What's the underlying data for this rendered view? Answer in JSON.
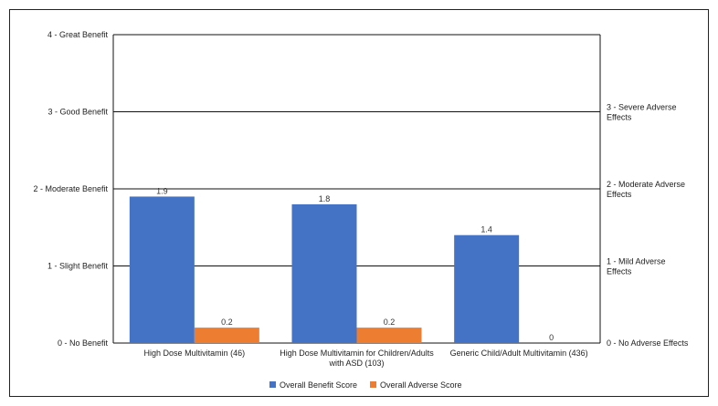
{
  "chart_data": {
    "type": "bar",
    "categories": [
      "High Dose Multivitamin (46)",
      "High Dose Multivitamin for Children/Adults with ASD (103)",
      "Generic Child/Adult Multivitamin (436)"
    ],
    "series": [
      {
        "name": "Overall Benefit Score",
        "values": [
          1.9,
          1.8,
          1.4
        ],
        "color": "#4472C4"
      },
      {
        "name": "Overall Adverse Score",
        "values": [
          0.2,
          0.2,
          0
        ],
        "color": "#ED7D31"
      }
    ],
    "ylim": [
      0,
      4
    ],
    "grid": true,
    "legend_position": "bottom",
    "left_tick_labels": [
      "0 - No Benefit",
      "1 - Slight Benefit",
      "2 - Moderate Benefit",
      "3 - Good Benefit",
      "4 - Great Benefit"
    ],
    "right_tick_labels": [
      "0 - No Adverse Effects",
      "1 - Mild Adverse Effects",
      "2 - Moderate Adverse Effects",
      "3 - Severe Adverse Effects"
    ]
  }
}
